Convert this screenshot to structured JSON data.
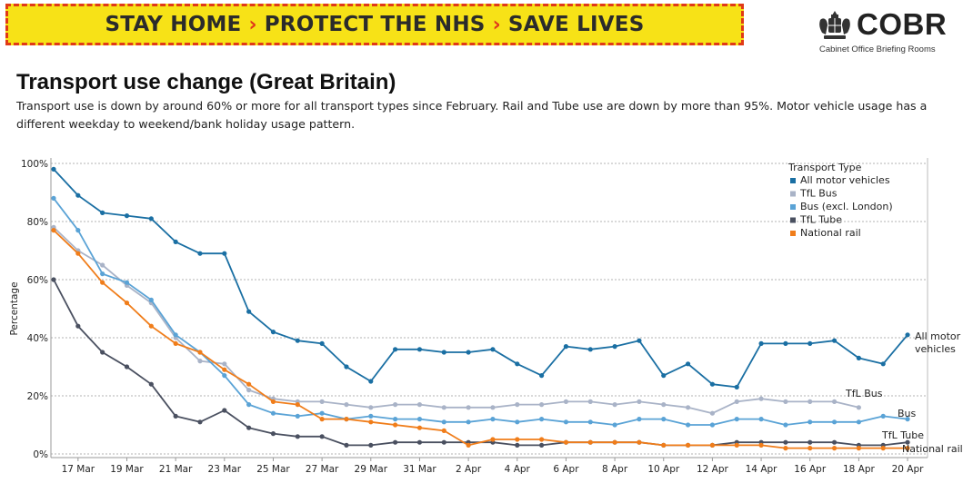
{
  "banner": {
    "part1": "STAY HOME",
    "part2": "PROTECT THE NHS",
    "part3": "SAVE LIVES",
    "separator": "›",
    "colors": {
      "background": "#f7e217",
      "border": "#e03a16",
      "text": "#2b2b2b"
    }
  },
  "logo": {
    "title": "COBR",
    "subtitle": "Cabinet Office Briefing Rooms"
  },
  "heading": {
    "title": "Transport use change (Great Britain)",
    "description": "Transport use is down by around 60% or more for all transport types since February. Rail and Tube use are down by more than 95%. Motor vehicle usage has a different weekday to weekend/bank holiday usage pattern."
  },
  "chart_data": {
    "type": "line",
    "title": "Transport use change (Great Britain)",
    "xlabel": "",
    "ylabel": "Percentage",
    "ylim": [
      0,
      100
    ],
    "yticks": [
      "0%",
      "20%",
      "40%",
      "60%",
      "80%",
      "100%"
    ],
    "x_tick_labels": [
      "17 Mar",
      "19 Mar",
      "21 Mar",
      "23 Mar",
      "25 Mar",
      "27 Mar",
      "29 Mar",
      "31 Mar",
      "2 Apr",
      "4 Apr",
      "6 Apr",
      "8 Apr",
      "10 Apr",
      "12 Apr",
      "14 Apr",
      "16 Apr",
      "18 Apr",
      "20 Apr"
    ],
    "x_tick_day_index": [
      1,
      3,
      5,
      7,
      9,
      11,
      13,
      15,
      17,
      19,
      21,
      23,
      25,
      27,
      29,
      31,
      33,
      35
    ],
    "x_range_days": [
      0,
      35
    ],
    "day0": "16 Mar",
    "legend_title": "Transport Type",
    "legend_position": "top-right",
    "grid": true,
    "series": [
      {
        "name": "All motor vehicles",
        "end_label": [
          "All motor",
          "vehicles"
        ],
        "color": "#1a6fa3",
        "x": [
          0,
          1,
          2,
          3,
          4,
          5,
          6,
          7,
          8,
          9,
          10,
          11,
          12,
          13,
          14,
          15,
          16,
          17,
          18,
          19,
          20,
          21,
          22,
          23,
          24,
          25,
          26,
          27,
          28,
          29,
          30,
          31,
          32,
          33,
          34,
          35
        ],
        "y": [
          98,
          89,
          83,
          82,
          81,
          73,
          69,
          69,
          49,
          42,
          39,
          38,
          30,
          25,
          36,
          36,
          35,
          35,
          36,
          31,
          27,
          37,
          36,
          37,
          39,
          27,
          31,
          24,
          23,
          38,
          38,
          38,
          39,
          33,
          31,
          41
        ]
      },
      {
        "name": "TfL Bus",
        "end_label": [
          "TfL Bus"
        ],
        "color": "#a9b3c7",
        "x": [
          0,
          1,
          2,
          3,
          4,
          5,
          6,
          7,
          8,
          9,
          10,
          11,
          12,
          13,
          14,
          15,
          16,
          17,
          18,
          19,
          20,
          21,
          22,
          23,
          24,
          25,
          26,
          27,
          28,
          29,
          30,
          31,
          32,
          33
        ],
        "y": [
          78,
          70,
          65,
          58,
          52,
          40,
          32,
          31,
          22,
          19,
          18,
          18,
          17,
          16,
          17,
          17,
          16,
          16,
          16,
          17,
          17,
          18,
          18,
          17,
          18,
          17,
          16,
          14,
          18,
          19,
          18,
          18,
          18,
          16
        ]
      },
      {
        "name": "Bus (excl. London)",
        "end_label": [
          "Bus"
        ],
        "color": "#5aa3d6",
        "x": [
          0,
          1,
          2,
          3,
          4,
          5,
          6,
          7,
          8,
          9,
          10,
          11,
          12,
          13,
          14,
          15,
          16,
          17,
          18,
          19,
          20,
          21,
          22,
          23,
          24,
          25,
          26,
          27,
          28,
          29,
          30,
          31,
          32,
          33,
          34,
          35
        ],
        "y": [
          88,
          77,
          62,
          59,
          53,
          41,
          35,
          27,
          17,
          14,
          13,
          14,
          12,
          13,
          12,
          12,
          11,
          11,
          12,
          11,
          12,
          11,
          11,
          10,
          12,
          12,
          10,
          10,
          12,
          12,
          10,
          11,
          11,
          11,
          13,
          12
        ]
      },
      {
        "name": "TfL Tube",
        "end_label": [
          "TfL Tube"
        ],
        "color": "#4a5060",
        "x": [
          0,
          1,
          2,
          3,
          4,
          5,
          6,
          7,
          8,
          9,
          10,
          11,
          12,
          13,
          14,
          15,
          16,
          17,
          18,
          19,
          20,
          21,
          22,
          23,
          24,
          25,
          26,
          27,
          28,
          29,
          30,
          31,
          32,
          33,
          34,
          35
        ],
        "y": [
          60,
          44,
          35,
          30,
          24,
          13,
          11,
          15,
          9,
          7,
          6,
          6,
          3,
          3,
          4,
          4,
          4,
          4,
          4,
          3,
          3,
          4,
          4,
          4,
          4,
          3,
          3,
          3,
          4,
          4,
          4,
          4,
          4,
          3,
          3,
          4
        ]
      },
      {
        "name": "National rail",
        "end_label": [
          "National rail"
        ],
        "color": "#f07d1a",
        "x": [
          0,
          1,
          2,
          3,
          4,
          5,
          6,
          7,
          8,
          9,
          10,
          11,
          12,
          13,
          14,
          15,
          16,
          17,
          18,
          19,
          20,
          21,
          22,
          23,
          24,
          25,
          26,
          27,
          28,
          29,
          30,
          31,
          32,
          33,
          34,
          35
        ],
        "y": [
          77,
          69,
          59,
          52,
          44,
          38,
          35,
          29,
          24,
          18,
          17,
          12,
          12,
          11,
          10,
          9,
          8,
          3,
          5,
          5,
          5,
          4,
          4,
          4,
          4,
          3,
          3,
          3,
          3,
          3,
          2,
          2,
          2,
          2,
          2,
          2
        ]
      }
    ]
  }
}
